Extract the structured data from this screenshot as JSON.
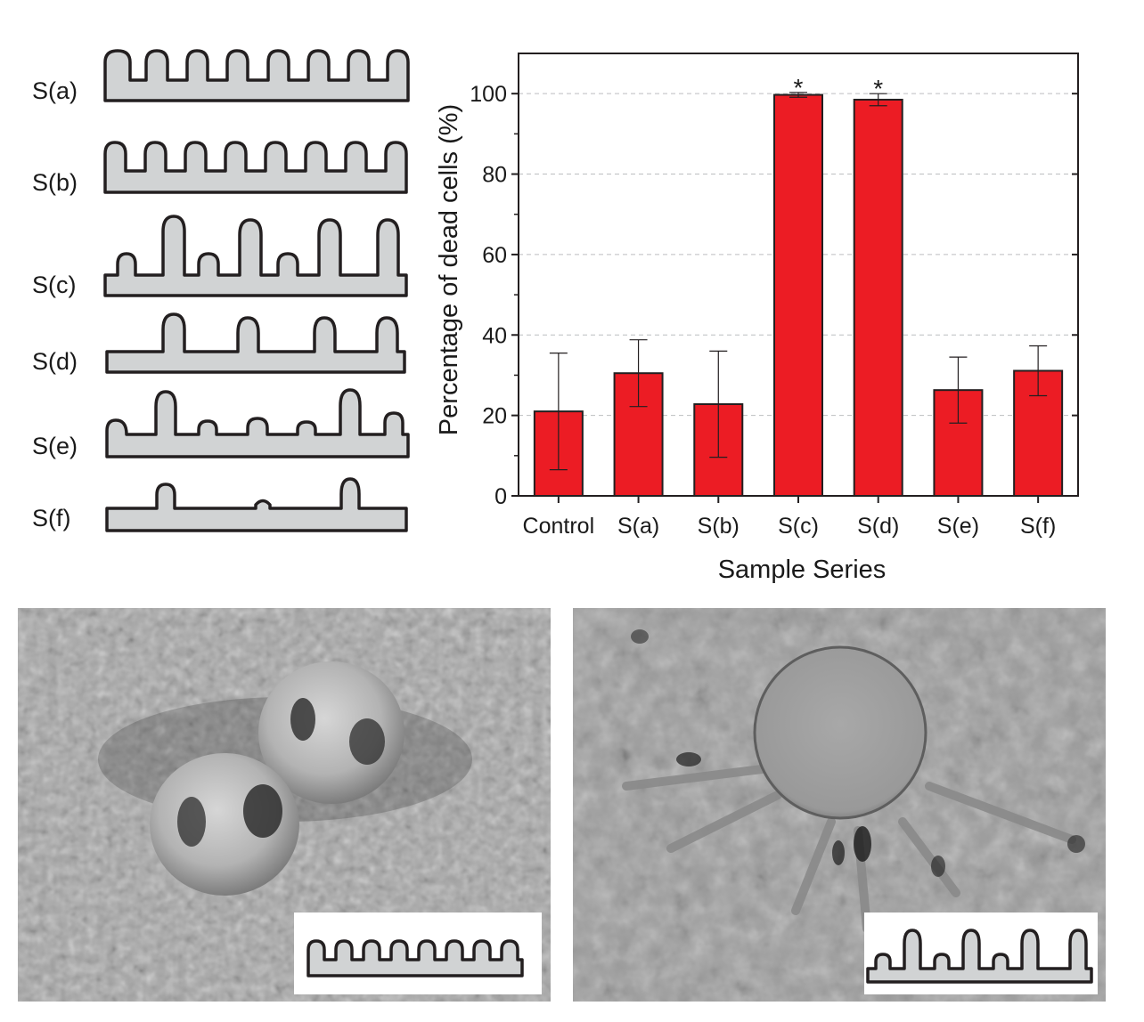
{
  "schematic_labels": [
    "S(a)",
    "S(b)",
    "S(c)",
    "S(d)",
    "S(e)",
    "S(f)"
  ],
  "chart_data": {
    "type": "bar",
    "title": "",
    "xlabel": "Sample Series",
    "ylabel": "Percentage of dead cells (%)",
    "categories": [
      "Control",
      "S(a)",
      "S(b)",
      "S(c)",
      "S(d)",
      "S(e)",
      "S(f)"
    ],
    "values": [
      21,
      30.5,
      22.8,
      99.7,
      98.5,
      26.3,
      31.1
    ],
    "error": [
      14.5,
      8.3,
      13.2,
      0.6,
      1.5,
      8.2,
      6.2
    ],
    "significance": [
      "",
      "",
      "",
      "*",
      "*",
      "",
      ""
    ],
    "ylim": [
      0,
      110
    ],
    "yticks": [
      0,
      20,
      40,
      60,
      80,
      100
    ],
    "grid": "horizontal dashed",
    "bar_color": "#ec1c24"
  },
  "micrographs": [
    {
      "name": "sem-cell-on-uniform-pillars",
      "inset_profile": "S(a)"
    },
    {
      "name": "sem-cell-on-mixed-height-pillars",
      "inset_profile": "S(c)"
    }
  ],
  "colors": {
    "bar": "#ec1c24",
    "profile_fill": "#d1d3d4",
    "profile_stroke": "#231f20"
  }
}
